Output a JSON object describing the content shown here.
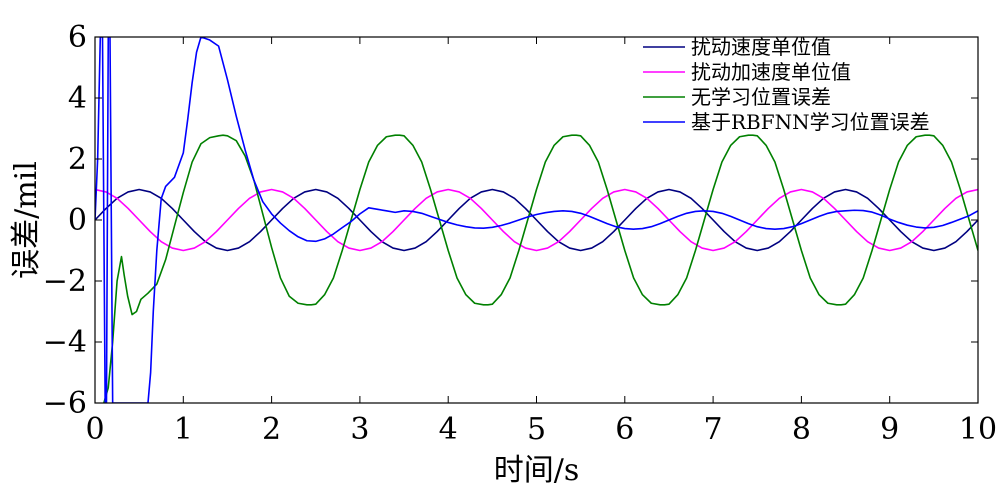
{
  "chart_data": {
    "type": "line",
    "xlabel": "时间/s",
    "ylabel": "误差/mil",
    "xlim": [
      0,
      10
    ],
    "ylim": [
      -6,
      6
    ],
    "xticks": [
      0,
      1,
      2,
      3,
      4,
      5,
      6,
      7,
      8,
      9,
      10
    ],
    "yticks": [
      -6,
      -4,
      -2,
      0,
      2,
      4,
      6
    ],
    "ytick_labels": [
      "−6",
      "−4",
      "−2",
      "0",
      "2",
      "4",
      "6"
    ],
    "grid": false,
    "legend_position": "top-right",
    "series": [
      {
        "name": "扰动速度单位值",
        "color": "#000080",
        "x": [
          0,
          0.125,
          0.25,
          0.375,
          0.5,
          0.625,
          0.75,
          0.875,
          1,
          1.125,
          1.25,
          1.375,
          1.5,
          1.625,
          1.75,
          1.875,
          2,
          2.125,
          2.25,
          2.375,
          2.5,
          2.625,
          2.75,
          2.875,
          3,
          3.125,
          3.25,
          3.375,
          3.5,
          3.625,
          3.75,
          3.875,
          4,
          4.125,
          4.25,
          4.375,
          4.5,
          4.625,
          4.75,
          4.875,
          5,
          5.125,
          5.25,
          5.375,
          5.5,
          5.625,
          5.75,
          5.875,
          6,
          6.125,
          6.25,
          6.375,
          6.5,
          6.625,
          6.75,
          6.875,
          7,
          7.125,
          7.25,
          7.375,
          7.5,
          7.625,
          7.75,
          7.875,
          8,
          8.125,
          8.25,
          8.375,
          8.5,
          8.625,
          8.75,
          8.875,
          9,
          9.125,
          9.25,
          9.375,
          9.5,
          9.625,
          9.75,
          9.875,
          10
        ],
        "y": [
          0,
          0.38,
          0.71,
          0.92,
          1,
          0.92,
          0.71,
          0.38,
          0,
          -0.38,
          -0.71,
          -0.92,
          -1,
          -0.92,
          -0.71,
          -0.38,
          0,
          0.38,
          0.71,
          0.92,
          1,
          0.92,
          0.71,
          0.38,
          0,
          -0.38,
          -0.71,
          -0.92,
          -1,
          -0.92,
          -0.71,
          -0.38,
          0,
          0.38,
          0.71,
          0.92,
          1,
          0.92,
          0.71,
          0.38,
          0,
          -0.38,
          -0.71,
          -0.92,
          -1,
          -0.92,
          -0.71,
          -0.38,
          0,
          0.38,
          0.71,
          0.92,
          1,
          0.92,
          0.71,
          0.38,
          0,
          -0.38,
          -0.71,
          -0.92,
          -1,
          -0.92,
          -0.71,
          -0.38,
          0,
          0.38,
          0.71,
          0.92,
          1,
          0.92,
          0.71,
          0.38,
          0,
          -0.38,
          -0.71,
          -0.92,
          -1,
          -0.92,
          -0.71,
          -0.38,
          0
        ]
      },
      {
        "name": "扰动加速度单位值",
        "color": "#ff00ff",
        "x": [
          0,
          0.125,
          0.25,
          0.375,
          0.5,
          0.625,
          0.75,
          0.875,
          1,
          1.125,
          1.25,
          1.375,
          1.5,
          1.625,
          1.75,
          1.875,
          2,
          2.125,
          2.25,
          2.375,
          2.5,
          2.625,
          2.75,
          2.875,
          3,
          3.125,
          3.25,
          3.375,
          3.5,
          3.625,
          3.75,
          3.875,
          4,
          4.125,
          4.25,
          4.375,
          4.5,
          4.625,
          4.75,
          4.875,
          5,
          5.125,
          5.25,
          5.375,
          5.5,
          5.625,
          5.75,
          5.875,
          6,
          6.125,
          6.25,
          6.375,
          6.5,
          6.625,
          6.75,
          6.875,
          7,
          7.125,
          7.25,
          7.375,
          7.5,
          7.625,
          7.75,
          7.875,
          8,
          8.125,
          8.25,
          8.375,
          8.5,
          8.625,
          8.75,
          8.875,
          9,
          9.125,
          9.25,
          9.375,
          9.5,
          9.625,
          9.75,
          9.875,
          10
        ],
        "y": [
          1,
          0.92,
          0.71,
          0.38,
          0,
          -0.38,
          -0.71,
          -0.92,
          -1,
          -0.92,
          -0.71,
          -0.38,
          0,
          0.38,
          0.71,
          0.92,
          1,
          0.92,
          0.71,
          0.38,
          0,
          -0.38,
          -0.71,
          -0.92,
          -1,
          -0.92,
          -0.71,
          -0.38,
          0,
          0.38,
          0.71,
          0.92,
          1,
          0.92,
          0.71,
          0.38,
          0,
          -0.38,
          -0.71,
          -0.92,
          -1,
          -0.92,
          -0.71,
          -0.38,
          0,
          0.38,
          0.71,
          0.92,
          1,
          0.92,
          0.71,
          0.38,
          0,
          -0.38,
          -0.71,
          -0.92,
          -1,
          -0.92,
          -0.71,
          -0.38,
          0,
          0.38,
          0.71,
          0.92,
          1,
          0.92,
          0.71,
          0.38,
          0,
          -0.38,
          -0.71,
          -0.92,
          -1,
          -0.92,
          -0.71,
          -0.38,
          0,
          0.38,
          0.71,
          0.92,
          1
        ]
      },
      {
        "name": "无学习位置误差",
        "color": "#008000",
        "x": [
          0.1,
          0.15,
          0.2,
          0.25,
          0.3,
          0.33,
          0.37,
          0.42,
          0.47,
          0.52,
          0.6,
          0.7,
          0.8,
          0.9,
          1,
          1.1,
          1.2,
          1.3,
          1.4,
          1.45,
          1.5,
          1.6,
          1.7,
          1.8,
          1.9,
          2,
          2.1,
          2.2,
          2.3,
          2.4,
          2.45,
          2.5,
          2.6,
          2.7,
          2.8,
          2.9,
          3,
          3.1,
          3.2,
          3.3,
          3.4,
          3.45,
          3.5,
          3.6,
          3.7,
          3.8,
          3.9,
          4,
          4.1,
          4.2,
          4.3,
          4.4,
          4.45,
          4.5,
          4.6,
          4.7,
          4.8,
          4.9,
          5,
          5.1,
          5.2,
          5.3,
          5.4,
          5.45,
          5.5,
          5.6,
          5.7,
          5.8,
          5.9,
          6,
          6.1,
          6.2,
          6.3,
          6.4,
          6.45,
          6.5,
          6.6,
          6.7,
          6.8,
          6.9,
          7,
          7.1,
          7.2,
          7.3,
          7.4,
          7.45,
          7.5,
          7.6,
          7.7,
          7.8,
          7.9,
          8,
          8.1,
          8.2,
          8.3,
          8.4,
          8.45,
          8.5,
          8.6,
          8.7,
          8.8,
          8.9,
          9,
          9.1,
          9.2,
          9.3,
          9.4,
          9.45,
          9.5,
          9.6,
          9.7,
          9.8,
          9.9,
          10
        ],
        "y": [
          -6,
          -5.5,
          -4,
          -2,
          -1.2,
          -1.8,
          -2.5,
          -3.1,
          -3,
          -2.6,
          -2.4,
          -2.1,
          -1.3,
          -0.2,
          0.9,
          1.9,
          2.5,
          2.7,
          2.76,
          2.78,
          2.76,
          2.6,
          2.1,
          1.3,
          0.2,
          -0.9,
          -1.9,
          -2.5,
          -2.73,
          -2.78,
          -2.78,
          -2.76,
          -2.45,
          -1.9,
          -1,
          0,
          1,
          1.9,
          2.45,
          2.73,
          2.78,
          2.78,
          2.76,
          2.45,
          1.9,
          1,
          0,
          -1,
          -1.9,
          -2.45,
          -2.73,
          -2.78,
          -2.78,
          -2.76,
          -2.45,
          -1.9,
          -1,
          0,
          1,
          1.9,
          2.45,
          2.73,
          2.78,
          2.78,
          2.76,
          2.45,
          1.9,
          1,
          0,
          -1,
          -1.9,
          -2.45,
          -2.73,
          -2.78,
          -2.78,
          -2.76,
          -2.45,
          -1.9,
          -1,
          0,
          1,
          1.9,
          2.45,
          2.73,
          2.78,
          2.78,
          2.76,
          2.45,
          1.9,
          1,
          0,
          -1,
          -1.9,
          -2.45,
          -2.73,
          -2.78,
          -2.78,
          -2.76,
          -2.45,
          -1.9,
          -1,
          0,
          1,
          1.9,
          2.45,
          2.73,
          2.78,
          2.78,
          2.76,
          2.45,
          1.9,
          1,
          0,
          -1
        ]
      },
      {
        "name": "基于RBFNN学习位置误差",
        "color": "#0000ff",
        "x": [
          0,
          0.03,
          0.06,
          0.085,
          0.1,
          0.115,
          0.13,
          0.15,
          0.17,
          0.2,
          0.25,
          0.3,
          0.35,
          0.4,
          0.45,
          0.5,
          0.55,
          0.6,
          0.63,
          0.66,
          0.7,
          0.75,
          0.8,
          0.9,
          1,
          1.05,
          1.1,
          1.15,
          1.2,
          1.3,
          1.4,
          1.5,
          1.6,
          1.7,
          1.8,
          1.9,
          2,
          2.1,
          2.2,
          2.3,
          2.4,
          2.5,
          2.6,
          2.7,
          2.8,
          2.9,
          3,
          3.1,
          3.2,
          3.3,
          3.4,
          3.5,
          3.6,
          3.7,
          3.8,
          3.9,
          4,
          4.1,
          4.2,
          4.3,
          4.4,
          4.5,
          4.6,
          4.7,
          4.8,
          4.9,
          5,
          5.1,
          5.2,
          5.3,
          5.4,
          5.5,
          5.6,
          5.7,
          5.8,
          5.9,
          6,
          6.1,
          6.2,
          6.3,
          6.4,
          6.5,
          6.6,
          6.7,
          6.8,
          6.9,
          7,
          7.1,
          7.2,
          7.3,
          7.4,
          7.5,
          7.6,
          7.7,
          7.8,
          7.9,
          8,
          8.1,
          8.2,
          8.3,
          8.4,
          8.5,
          8.6,
          8.7,
          8.8,
          8.9,
          9,
          9.1,
          9.2,
          9.3,
          9.4,
          9.5,
          9.6,
          9.7,
          9.8,
          9.9,
          10
        ],
        "y": [
          0,
          2,
          6,
          6,
          0,
          -6,
          -6,
          6,
          6,
          -6,
          -6,
          -6,
          -6,
          -6,
          -6,
          -6,
          -6,
          -6,
          -5,
          -3,
          -1,
          0.7,
          1.1,
          1.4,
          2.2,
          3.3,
          4.5,
          5.5,
          6,
          5.9,
          5.7,
          4.6,
          3.4,
          2.3,
          1.3,
          0.6,
          0.2,
          -0.1,
          -0.35,
          -0.55,
          -0.68,
          -0.7,
          -0.62,
          -0.46,
          -0.25,
          -0.05,
          0.2,
          0.4,
          0.35,
          0.3,
          0.25,
          0.3,
          0.28,
          0.22,
          0.12,
          0.02,
          -0.08,
          -0.16,
          -0.22,
          -0.26,
          -0.27,
          -0.24,
          -0.18,
          -0.1,
          0,
          0.1,
          0.18,
          0.24,
          0.28,
          0.3,
          0.28,
          0.22,
          0.12,
          0,
          -0.12,
          -0.22,
          -0.28,
          -0.3,
          -0.28,
          -0.22,
          -0.12,
          0,
          0.12,
          0.22,
          0.28,
          0.3,
          0.28,
          0.22,
          0.12,
          0,
          -0.12,
          -0.22,
          -0.28,
          -0.3,
          -0.28,
          -0.22,
          -0.12,
          0,
          0.12,
          0.22,
          0.28,
          0.3,
          0.32,
          0.31,
          0.26,
          0.16,
          0.03,
          -0.08,
          -0.17,
          -0.23,
          -0.26,
          -0.24,
          -0.18,
          -0.08,
          0.03,
          0.14,
          0.3
        ]
      }
    ]
  }
}
